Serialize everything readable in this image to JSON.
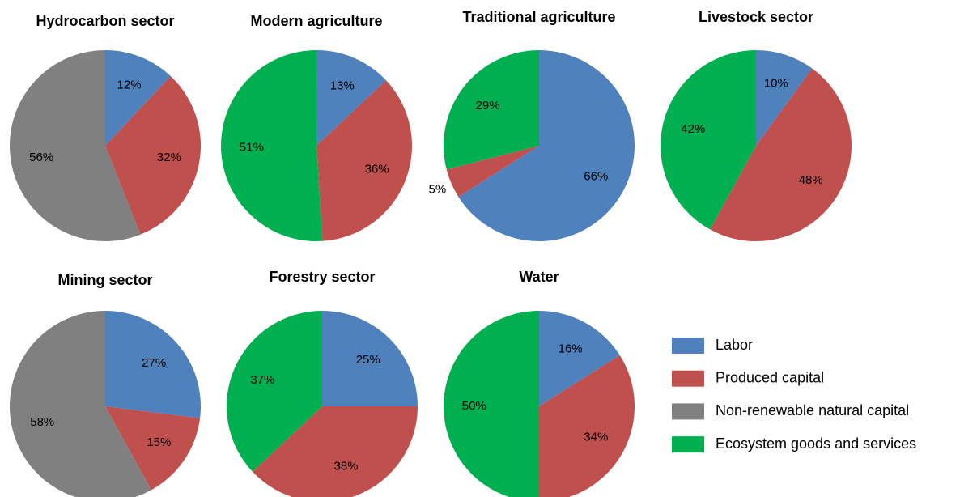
{
  "chart_data": [
    {
      "type": "pie",
      "title": "Hydrocarbon sector",
      "values": [
        12,
        32,
        56,
        null
      ],
      "value_labels": [
        "12%",
        "32%",
        "56%",
        null
      ]
    },
    {
      "type": "pie",
      "title": "Modern agriculture",
      "values": [
        13,
        36,
        null,
        51
      ],
      "value_labels": [
        "13%",
        "36%",
        null,
        "51%"
      ]
    },
    {
      "type": "pie",
      "title": "Traditional agriculture",
      "values": [
        66,
        5,
        null,
        29
      ],
      "value_labels": [
        "66%",
        "5%",
        null,
        "29%"
      ]
    },
    {
      "type": "pie",
      "title": "Livestock sector",
      "values": [
        10,
        48,
        null,
        42
      ],
      "value_labels": [
        "10%",
        "48%",
        null,
        "42%"
      ]
    },
    {
      "type": "pie",
      "title": "Mining sector",
      "values": [
        27,
        15,
        58,
        null
      ],
      "value_labels": [
        "27%",
        "15%",
        "58%",
        null
      ]
    },
    {
      "type": "pie",
      "title": "Forestry sector",
      "values": [
        25,
        38,
        null,
        37
      ],
      "value_labels": [
        "25%",
        "38%",
        null,
        "37%"
      ]
    },
    {
      "type": "pie",
      "title": "Water",
      "values": [
        16,
        34,
        null,
        50
      ],
      "value_labels": [
        "16%",
        "34%",
        null,
        "50%"
      ]
    }
  ],
  "legend": {
    "position": "right",
    "series": [
      {
        "name": "Labor",
        "color": "#4f81bd"
      },
      {
        "name": "Produced capital",
        "color": "#c0504d"
      },
      {
        "name": "Non-renewable natural capital",
        "color": "#808080"
      },
      {
        "name": "Ecosystem goods and services",
        "color": "#00b050"
      }
    ]
  }
}
